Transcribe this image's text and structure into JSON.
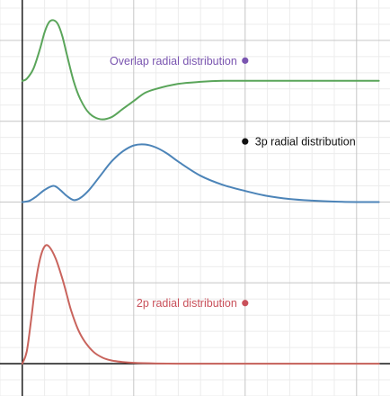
{
  "chart_data": {
    "type": "line",
    "title": "",
    "xlabel": "",
    "ylabel": "",
    "xlim": [
      -0.1,
      1.65
    ],
    "ylim": [
      -0.16,
      1.8
    ],
    "grid": true,
    "colors": {
      "overlap": "#5aa55a",
      "three_p": "#4c84b8",
      "two_p": "#c9645d",
      "overlap_point": "#7a55b0",
      "three_p_point": "#111111",
      "two_p_point": "#c9505a",
      "axis": "#000000",
      "major_grid": "#c6c6c6",
      "minor_grid": "#ececec"
    },
    "series": [
      {
        "key": "overlap",
        "color": "#5aa55a",
        "x": [
          0,
          0.02,
          0.05,
          0.08,
          0.1,
          0.12,
          0.14,
          0.16,
          0.18,
          0.2,
          0.23,
          0.26,
          0.3,
          0.35,
          0.4,
          0.45,
          0.5,
          0.55,
          0.6,
          0.7,
          0.8,
          0.9,
          1.0,
          1.2,
          1.4,
          1.6
        ],
        "y": [
          1.4,
          1.41,
          1.46,
          1.56,
          1.64,
          1.69,
          1.7,
          1.68,
          1.62,
          1.53,
          1.4,
          1.31,
          1.24,
          1.21,
          1.22,
          1.26,
          1.3,
          1.34,
          1.36,
          1.385,
          1.395,
          1.4,
          1.4,
          1.4,
          1.4,
          1.4
        ]
      },
      {
        "key": "three_p",
        "color": "#4c84b8",
        "x": [
          0,
          0.03,
          0.06,
          0.1,
          0.14,
          0.17,
          0.2,
          0.23,
          0.26,
          0.3,
          0.35,
          0.4,
          0.45,
          0.5,
          0.55,
          0.6,
          0.65,
          0.7,
          0.8,
          0.9,
          1.0,
          1.1,
          1.2,
          1.3,
          1.4,
          1.5,
          1.6
        ],
        "y": [
          0.8,
          0.805,
          0.825,
          0.86,
          0.88,
          0.86,
          0.83,
          0.81,
          0.82,
          0.86,
          0.93,
          1.0,
          1.05,
          1.08,
          1.085,
          1.07,
          1.04,
          1.0,
          0.93,
          0.885,
          0.855,
          0.83,
          0.815,
          0.807,
          0.802,
          0.8,
          0.8
        ]
      },
      {
        "key": "two_p",
        "color": "#c9645d",
        "x": [
          0,
          0.02,
          0.04,
          0.06,
          0.08,
          0.1,
          0.12,
          0.15,
          0.18,
          0.2,
          0.22,
          0.25,
          0.28,
          0.32,
          0.36,
          0.4,
          0.45,
          0.5,
          0.6,
          0.7,
          0.8,
          1.0,
          1.2,
          1.6
        ],
        "y": [
          0.0,
          0.06,
          0.22,
          0.4,
          0.52,
          0.58,
          0.58,
          0.52,
          0.42,
          0.34,
          0.26,
          0.17,
          0.11,
          0.058,
          0.03,
          0.016,
          0.008,
          0.004,
          0.001,
          0.0,
          0.0,
          0.0,
          0.0,
          0.0
        ]
      }
    ],
    "annotations": [
      {
        "key": "overlap",
        "text": "Overlap radial distribution",
        "x": 1.0,
        "y": 1.5,
        "color": "#7a55b0",
        "text_color": "#7a55b0",
        "label_side": "left"
      },
      {
        "key": "three_p",
        "text": "3p radial distribution",
        "x": 1.0,
        "y": 1.1,
        "color": "#111111",
        "text_color": "#111111",
        "label_side": "right"
      },
      {
        "key": "two_p",
        "text": "2p radial distribution",
        "x": 1.0,
        "y": 0.3,
        "color": "#c9505a",
        "text_color": "#c9505a",
        "label_side": "left"
      }
    ]
  }
}
